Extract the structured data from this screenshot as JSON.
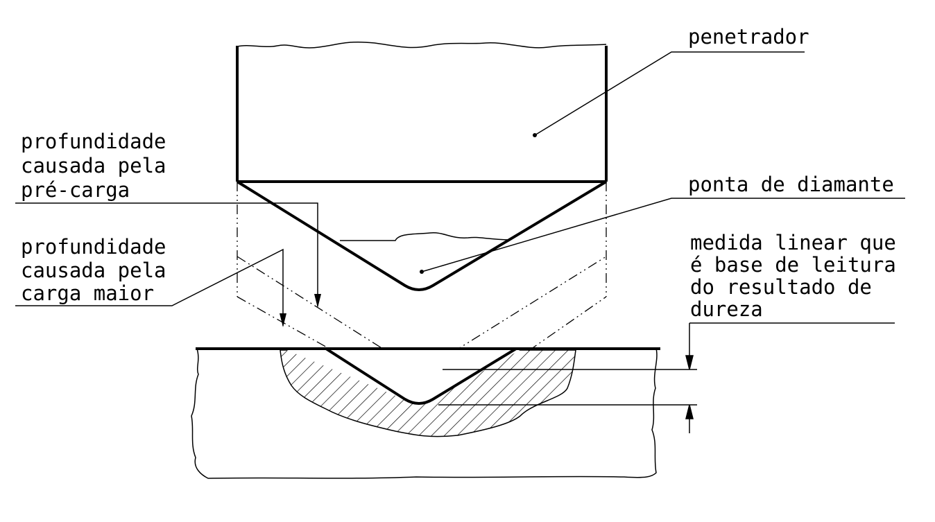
{
  "labels": {
    "penetrador": "penetrador",
    "ponta": "ponta de diamante",
    "pre_carga": [
      "profundidade",
      "causada pela",
      "pré-carga"
    ],
    "carga_maior": [
      "profundidade",
      "causada pela",
      "carga maior"
    ],
    "medida": [
      "medida linear que",
      "é base de leitura",
      "do resultado de",
      "dureza"
    ]
  },
  "colors": {
    "stroke": "#000000",
    "background": "#ffffff"
  }
}
